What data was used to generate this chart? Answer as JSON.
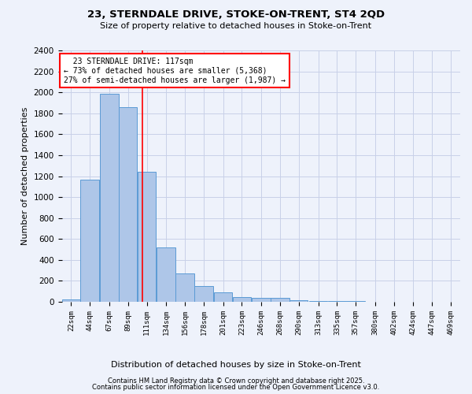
{
  "title_line1": "23, STERNDALE DRIVE, STOKE-ON-TRENT, ST4 2QD",
  "title_line2": "Size of property relative to detached houses in Stoke-on-Trent",
  "xlabel": "Distribution of detached houses by size in Stoke-on-Trent",
  "ylabel": "Number of detached properties",
  "bin_labels": [
    "22sqm",
    "44sqm",
    "67sqm",
    "89sqm",
    "111sqm",
    "134sqm",
    "156sqm",
    "178sqm",
    "201sqm",
    "223sqm",
    "246sqm",
    "268sqm",
    "290sqm",
    "313sqm",
    "335sqm",
    "357sqm",
    "380sqm",
    "402sqm",
    "424sqm",
    "447sqm",
    "469sqm"
  ],
  "bin_edges": [
    22,
    44,
    67,
    89,
    111,
    134,
    156,
    178,
    201,
    223,
    246,
    268,
    290,
    313,
    335,
    357,
    380,
    402,
    424,
    447,
    469
  ],
  "bar_heights": [
    25,
    1170,
    1990,
    1860,
    1240,
    520,
    270,
    150,
    90,
    45,
    38,
    35,
    18,
    8,
    5,
    4,
    3,
    2,
    2,
    1,
    2
  ],
  "bar_color": "#aec6e8",
  "bar_edge_color": "#5b9bd5",
  "subject_value": 117,
  "subject_label": "23 STERNDALE DRIVE: 117sqm",
  "annotation_line2": "← 73% of detached houses are smaller (5,368)",
  "annotation_line3": "27% of semi-detached houses are larger (1,987) →",
  "vline_color": "red",
  "annotation_box_edge_color": "red",
  "background_color": "#eef2fb",
  "grid_color": "#c8d0e8",
  "ylim": [
    0,
    2400
  ],
  "yticks": [
    0,
    200,
    400,
    600,
    800,
    1000,
    1200,
    1400,
    1600,
    1800,
    2000,
    2200,
    2400
  ],
  "footer_line1": "Contains HM Land Registry data © Crown copyright and database right 2025.",
  "footer_line2": "Contains public sector information licensed under the Open Government Licence v3.0."
}
